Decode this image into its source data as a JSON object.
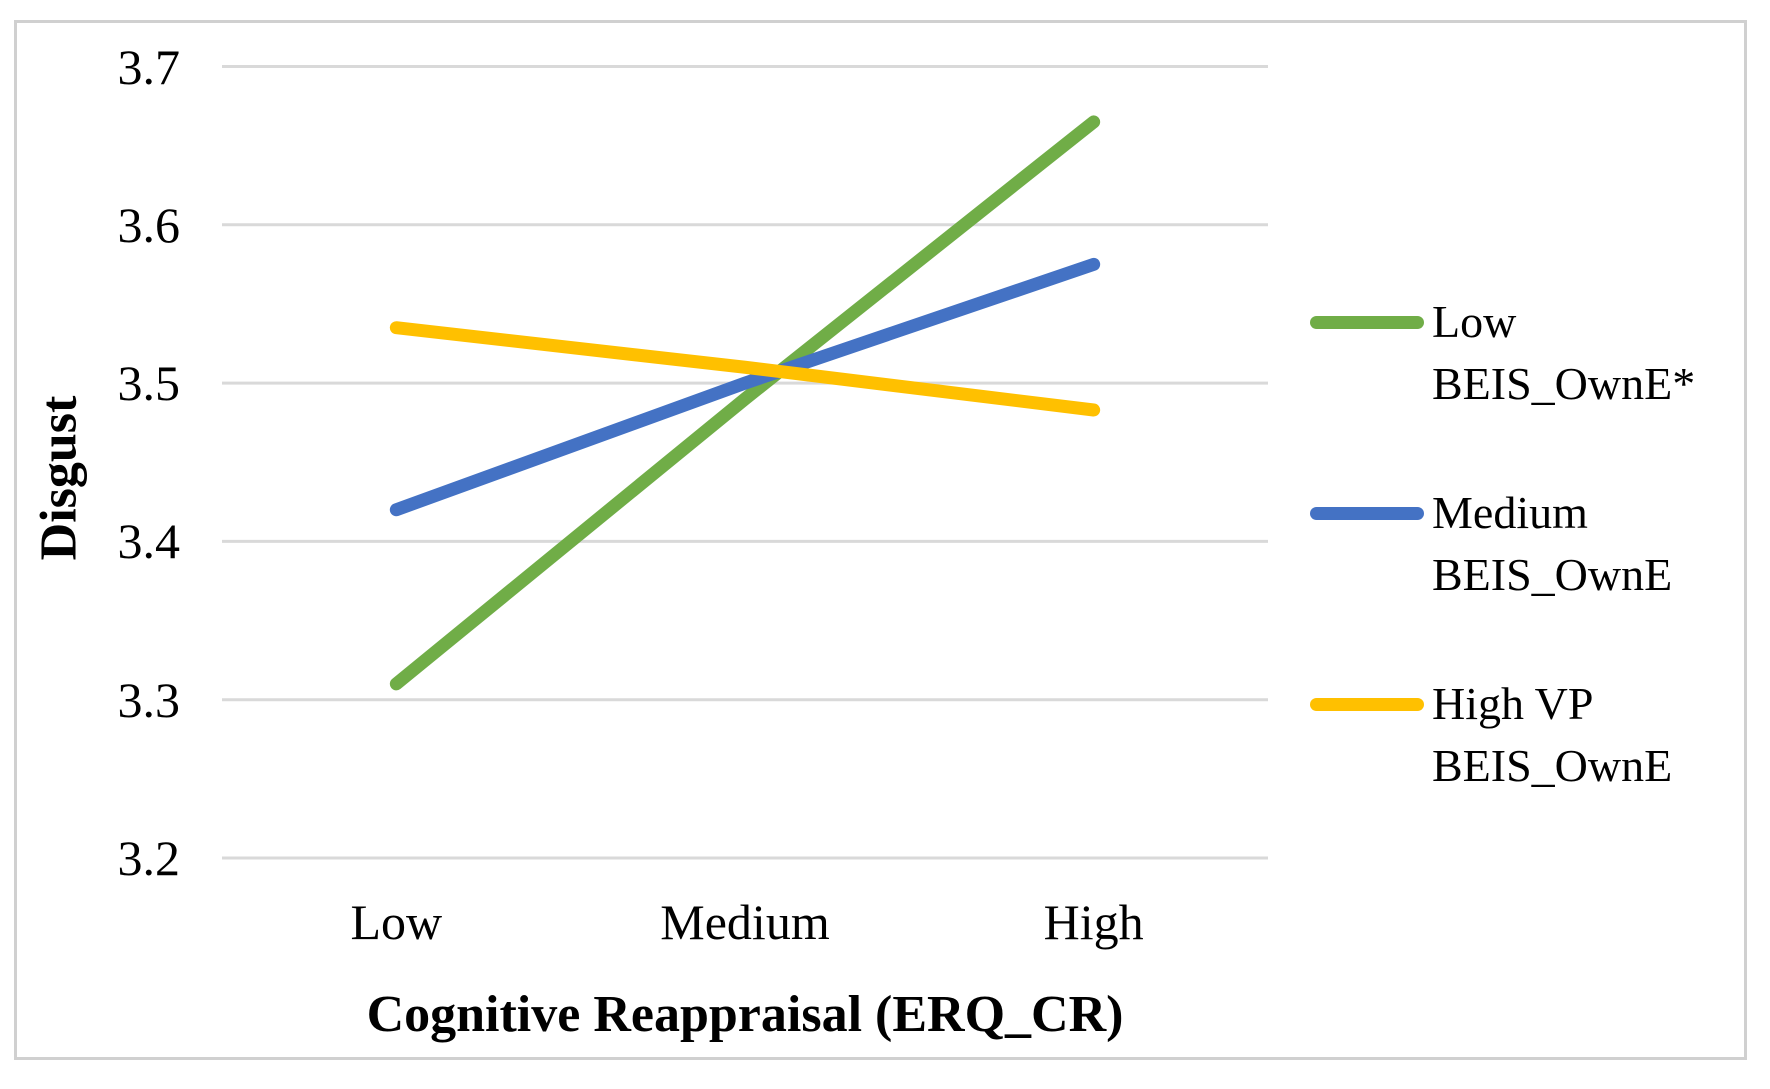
{
  "chart_data": {
    "type": "line",
    "title": "",
    "ylabel": "Disgust",
    "xlabel": "Cognitive Reappraisal (ERQ_CR)",
    "categories": [
      "Low",
      "Medium",
      "High"
    ],
    "y_ticks": [
      "3.7",
      "3.6",
      "3.5",
      "3.4",
      "3.3",
      "3.2"
    ],
    "ylim": [
      3.2,
      3.7
    ],
    "grid": true,
    "legend_position": "right",
    "series": [
      {
        "name": "Low BEIS_OwnE*",
        "legend_lines": [
          "Low",
          "BEIS_OwnE*"
        ],
        "color": "#70AD47",
        "values": [
          3.31,
          3.49,
          3.665
        ]
      },
      {
        "name": "Medium BEIS_OwnE",
        "legend_lines": [
          "Medium",
          "BEIS_OwnE"
        ],
        "color": "#4472C4",
        "values": [
          3.42,
          3.5,
          3.575
        ]
      },
      {
        "name": "High VP BEIS_OwnE",
        "legend_lines": [
          "High VP",
          "BEIS_OwnE"
        ],
        "color": "#FFC000",
        "values": [
          3.535,
          3.51,
          3.483
        ]
      }
    ]
  },
  "colors": {
    "gridline": "#D9D9D9",
    "frame_border": "#D0D0D0",
    "text": "#000000",
    "background": "#FFFFFF"
  }
}
